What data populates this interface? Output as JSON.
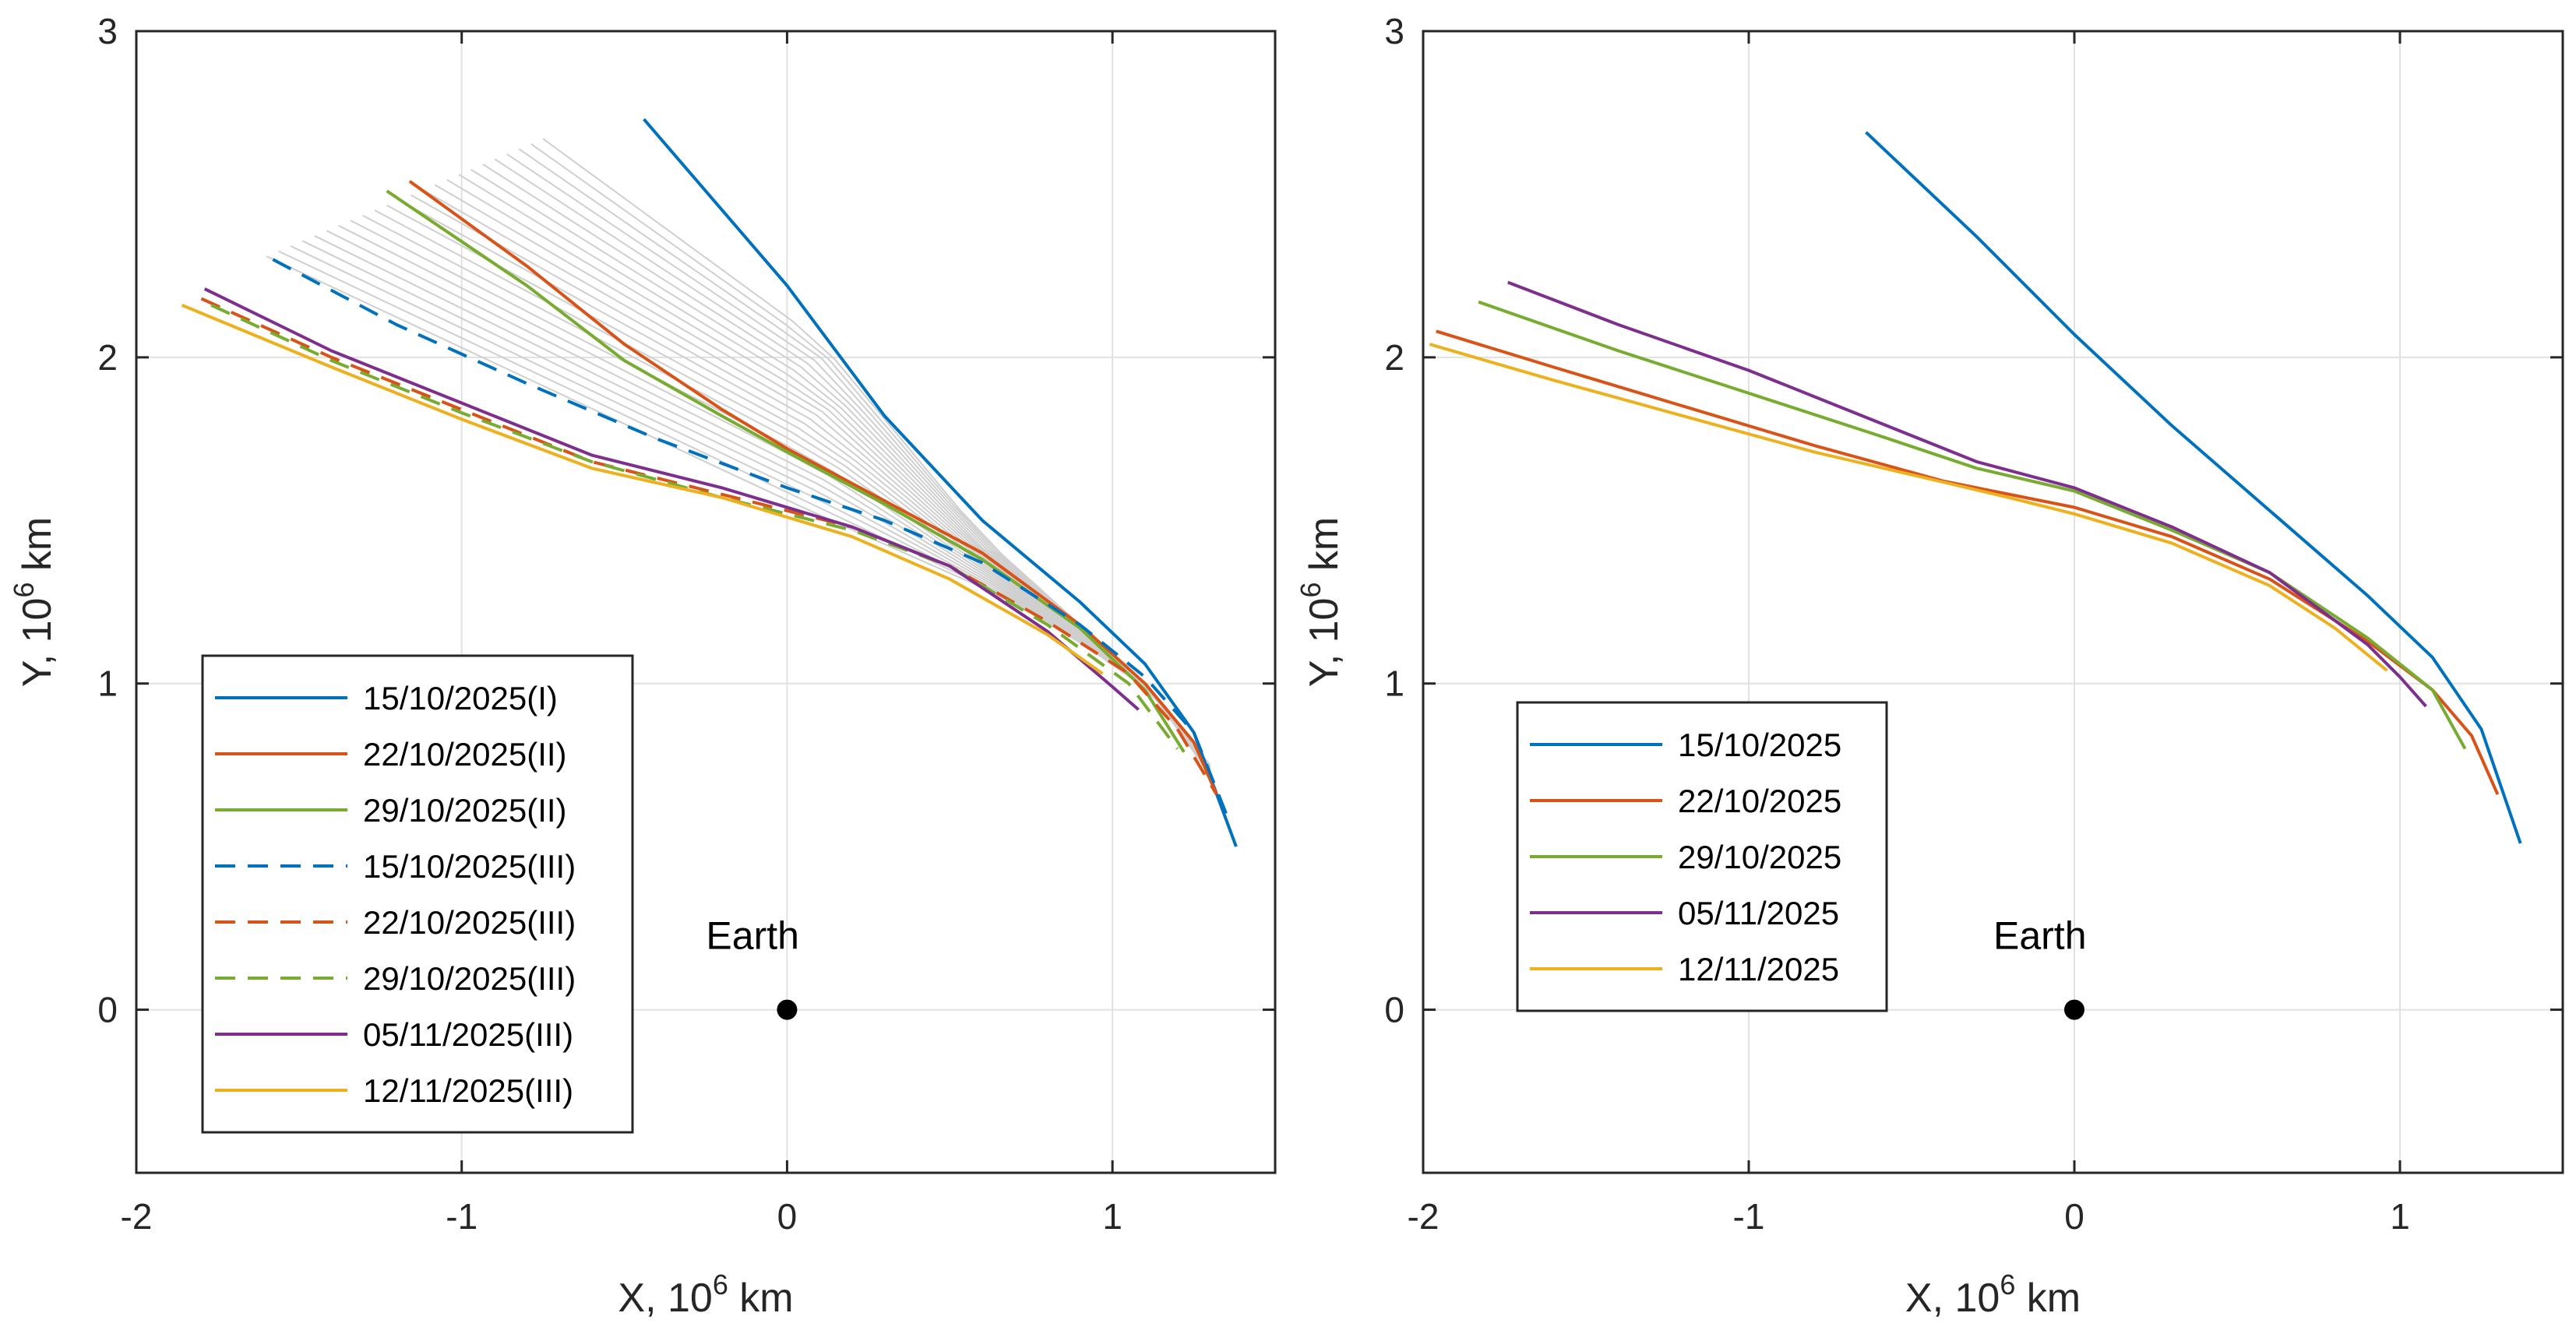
{
  "chart_data": [
    {
      "type": "line",
      "xlabel": "X, 10",
      "xlabel_sup": "6",
      "xlabel_unit": " km",
      "ylabel": "Y, 10",
      "ylabel_sup": "6",
      "ylabel_unit": " km",
      "xlim": [
        -2,
        1.5
      ],
      "ylim": [
        -0.5,
        3
      ],
      "xticks": [
        -2,
        -1,
        0,
        1
      ],
      "xtick_labels": [
        "-2",
        "-1",
        "0",
        "1"
      ],
      "yticks": [
        0,
        1,
        2,
        3
      ],
      "ytick_labels": [
        "0",
        "1",
        "2",
        "3"
      ],
      "grid": true,
      "legend_position": "lower-left",
      "annotation": {
        "text": "Earth",
        "point": [
          0,
          0
        ],
        "color": "#000000"
      },
      "background_family": {
        "color": "#cfcfcf",
        "count": 24,
        "start_from": [
          [
            -0.75,
            2.67
          ],
          [
            -0.45,
            2.73
          ]
        ],
        "start_to": [
          [
            -1.6,
            2.31
          ],
          [
            -1.78,
            2.17
          ]
        ],
        "path_from": [
          [
            0.1,
            2.05
          ],
          [
            0.6,
            1.45
          ],
          [
            1.1,
            1.0
          ],
          [
            1.3,
            0.75
          ]
        ],
        "path_to": [
          [
            -1.0,
            1.86
          ],
          [
            0.0,
            1.56
          ],
          [
            0.7,
            1.25
          ],
          [
            1.1,
            1.0
          ],
          [
            1.3,
            0.72
          ]
        ]
      },
      "series": [
        {
          "name": "15/10/2025(I)",
          "color": "#0072BD",
          "dash": "solid",
          "x": [
            -0.44,
            0.0,
            0.3,
            0.6,
            0.9,
            1.1,
            1.25,
            1.38
          ],
          "y": [
            2.73,
            2.22,
            1.82,
            1.5,
            1.25,
            1.06,
            0.85,
            0.5
          ]
        },
        {
          "name": "22/10/2025(II)",
          "color": "#D95319",
          "dash": "solid",
          "x": [
            -1.16,
            -0.8,
            -0.5,
            -0.2,
            0.0,
            0.3,
            0.6,
            0.9,
            1.1,
            1.25,
            1.32
          ],
          "y": [
            2.54,
            2.28,
            2.04,
            1.84,
            1.72,
            1.56,
            1.4,
            1.18,
            1.0,
            0.82,
            0.66
          ]
        },
        {
          "name": "29/10/2025(II)",
          "color": "#77AC30",
          "dash": "solid",
          "x": [
            -1.23,
            -0.8,
            -0.5,
            -0.2,
            0.0,
            0.3,
            0.6,
            0.9,
            1.1,
            1.22
          ],
          "y": [
            2.51,
            2.22,
            1.99,
            1.82,
            1.71,
            1.55,
            1.38,
            1.17,
            0.98,
            0.79
          ]
        },
        {
          "name": "15/10/2025(III)",
          "color": "#0072BD",
          "dash": "dashed",
          "x": [
            -1.58,
            -1.2,
            -0.8,
            -0.4,
            0.0,
            0.3,
            0.6,
            0.9,
            1.1,
            1.25,
            1.35
          ],
          "y": [
            2.3,
            2.1,
            1.92,
            1.75,
            1.6,
            1.5,
            1.37,
            1.18,
            1.02,
            0.85,
            0.6
          ]
        },
        {
          "name": "22/10/2025(III)",
          "color": "#D95319",
          "dash": "dashed",
          "x": [
            -1.8,
            -1.4,
            -1.0,
            -0.6,
            -0.2,
            0.2,
            0.5,
            0.8,
            1.05,
            1.2,
            1.32
          ],
          "y": [
            2.18,
            2.0,
            1.84,
            1.68,
            1.58,
            1.48,
            1.36,
            1.19,
            1.03,
            0.86,
            0.66
          ]
        },
        {
          "name": "29/10/2025(III)",
          "color": "#77AC30",
          "dash": "dashed",
          "x": [
            -1.77,
            -1.4,
            -1.0,
            -0.6,
            -0.2,
            0.2,
            0.5,
            0.8,
            1.05,
            1.2
          ],
          "y": [
            2.16,
            1.99,
            1.83,
            1.68,
            1.57,
            1.47,
            1.36,
            1.18,
            1.0,
            0.8
          ]
        },
        {
          "name": "05/11/2025(III)",
          "color": "#7E2F8E",
          "dash": "solid",
          "x": [
            -1.79,
            -1.4,
            -1.0,
            -0.6,
            -0.2,
            0.2,
            0.5,
            0.8,
            1.0,
            1.08
          ],
          "y": [
            2.21,
            2.02,
            1.86,
            1.7,
            1.6,
            1.48,
            1.36,
            1.16,
            0.99,
            0.92
          ]
        },
        {
          "name": "12/11/2025(III)",
          "color": "#EDB120",
          "dash": "solid",
          "x": [
            -1.86,
            -1.4,
            -1.0,
            -0.6,
            -0.2,
            0.2,
            0.5,
            0.8,
            0.97
          ],
          "y": [
            2.16,
            1.97,
            1.81,
            1.66,
            1.57,
            1.45,
            1.32,
            1.15,
            1.03
          ]
        }
      ]
    },
    {
      "type": "line",
      "xlabel": "X, 10",
      "xlabel_sup": "6",
      "xlabel_unit": " km",
      "ylabel": "Y, 10",
      "ylabel_sup": "6",
      "ylabel_unit": " km",
      "xlim": [
        -2,
        1.5
      ],
      "ylim": [
        -0.5,
        3
      ],
      "xticks": [
        -2,
        -1,
        0,
        1
      ],
      "xtick_labels": [
        "-2",
        "-1",
        "0",
        "1"
      ],
      "yticks": [
        0,
        1,
        2,
        3
      ],
      "ytick_labels": [
        "0",
        "1",
        "2",
        "3"
      ],
      "grid": true,
      "legend_position": "lower-left",
      "annotation": {
        "text": "Earth",
        "point": [
          0,
          0
        ],
        "color": "#000000"
      },
      "series": [
        {
          "name": "15/10/2025",
          "color": "#0072BD",
          "dash": "solid",
          "x": [
            -0.64,
            -0.3,
            0.0,
            0.3,
            0.6,
            0.9,
            1.1,
            1.25,
            1.37
          ],
          "y": [
            2.69,
            2.37,
            2.07,
            1.79,
            1.53,
            1.27,
            1.08,
            0.86,
            0.51
          ]
        },
        {
          "name": "22/10/2025",
          "color": "#D95319",
          "dash": "solid",
          "x": [
            -1.96,
            -1.6,
            -1.2,
            -0.8,
            -0.4,
            0.0,
            0.3,
            0.6,
            0.9,
            1.1,
            1.22,
            1.3
          ],
          "y": [
            2.08,
            1.97,
            1.85,
            1.73,
            1.62,
            1.54,
            1.45,
            1.32,
            1.13,
            0.98,
            0.84,
            0.66
          ]
        },
        {
          "name": "29/10/2025",
          "color": "#77AC30",
          "dash": "solid",
          "x": [
            -1.83,
            -1.4,
            -1.0,
            -0.6,
            -0.3,
            0.0,
            0.3,
            0.6,
            0.9,
            1.1,
            1.2
          ],
          "y": [
            2.17,
            2.02,
            1.89,
            1.76,
            1.66,
            1.59,
            1.47,
            1.34,
            1.14,
            0.98,
            0.8
          ]
        },
        {
          "name": "05/11/2025",
          "color": "#7E2F8E",
          "dash": "solid",
          "x": [
            -1.74,
            -1.4,
            -1.0,
            -0.6,
            -0.3,
            0.0,
            0.3,
            0.6,
            0.9,
            1.0,
            1.08
          ],
          "y": [
            2.23,
            2.1,
            1.96,
            1.8,
            1.68,
            1.6,
            1.48,
            1.34,
            1.12,
            1.02,
            0.93
          ]
        },
        {
          "name": "12/11/2025",
          "color": "#EDB120",
          "dash": "solid",
          "x": [
            -1.98,
            -1.6,
            -1.2,
            -0.8,
            -0.5,
            -0.2,
            0.0,
            0.3,
            0.6,
            0.8,
            0.96
          ],
          "y": [
            2.04,
            1.93,
            1.82,
            1.71,
            1.64,
            1.57,
            1.52,
            1.43,
            1.3,
            1.17,
            1.04
          ]
        }
      ]
    }
  ]
}
